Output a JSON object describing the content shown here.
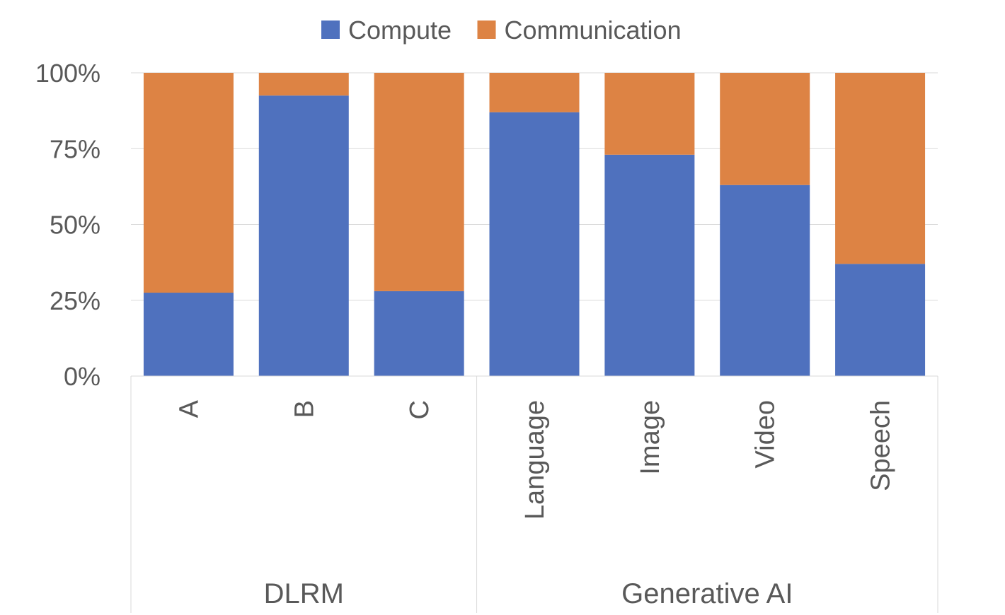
{
  "chart_data": {
    "type": "bar",
    "stacked": true,
    "normalized": true,
    "categories": [
      "A",
      "B",
      "C",
      "Language",
      "Image",
      "Video",
      "Speech"
    ],
    "groups": [
      {
        "label": "DLRM",
        "categories": [
          "A",
          "B",
          "C"
        ]
      },
      {
        "label": "Generative AI",
        "categories": [
          "Language",
          "Image",
          "Video",
          "Speech"
        ]
      }
    ],
    "series": [
      {
        "name": "Compute",
        "color": "#4F71BE",
        "values": [
          27.5,
          92.5,
          28,
          87,
          73,
          63,
          37
        ]
      },
      {
        "name": "Communication",
        "color": "#DD8344",
        "values": [
          72.5,
          7.5,
          72,
          13,
          27,
          37,
          63
        ]
      }
    ],
    "y_ticks": [
      "0%",
      "25%",
      "50%",
      "75%",
      "100%"
    ],
    "ylim": [
      0,
      100
    ],
    "grid": true,
    "legend_position": "top"
  }
}
